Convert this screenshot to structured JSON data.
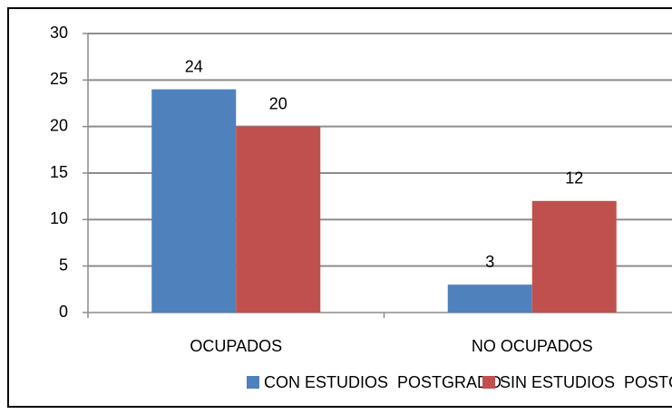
{
  "chart_data": {
    "type": "bar",
    "categories": [
      "OCUPADOS",
      "NO OCUPADOS"
    ],
    "series": [
      {
        "name": "CON ESTUDIOS  POSTGRADO",
        "color": "#4f81bd",
        "values": [
          24,
          3
        ]
      },
      {
        "name": "SIN ESTUDIOS  POSTGRADO",
        "color": "#c0504d",
        "values": [
          20,
          12
        ]
      }
    ],
    "ylim": [
      0,
      30
    ],
    "yticks": [
      0,
      5,
      10,
      15,
      20,
      25,
      30
    ],
    "grid": true,
    "legend": "bottom"
  }
}
